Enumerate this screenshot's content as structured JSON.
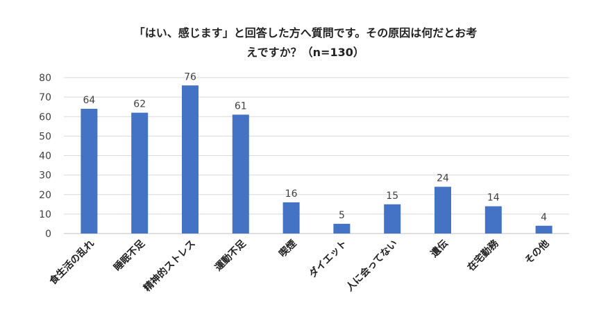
{
  "title_line1": "「はい、感じます」と回答した方へ質問です。その原因は何だとお考",
  "title_line2": "えですか？（n=130）",
  "chart_data": {
    "type": "bar",
    "title": "「はい、感じます」と回答した方へ質問です。その原因は何だとお考えですか？（n=130）",
    "categories": [
      "食生活の乱れ",
      "睡眠不足",
      "精神的ストレス",
      "運動不足",
      "喫煙",
      "ダイエット",
      "人に会ってない",
      "遺伝",
      "在宅勤務",
      "その他"
    ],
    "values": [
      64,
      62,
      76,
      61,
      16,
      5,
      15,
      24,
      14,
      4
    ],
    "ylim": [
      0,
      80
    ],
    "yticks": [
      0,
      10,
      20,
      30,
      40,
      50,
      60,
      70,
      80
    ],
    "grid": true,
    "data_labels": true,
    "bar_color": "#4472C4",
    "grid_color": "#D9D9D9"
  }
}
